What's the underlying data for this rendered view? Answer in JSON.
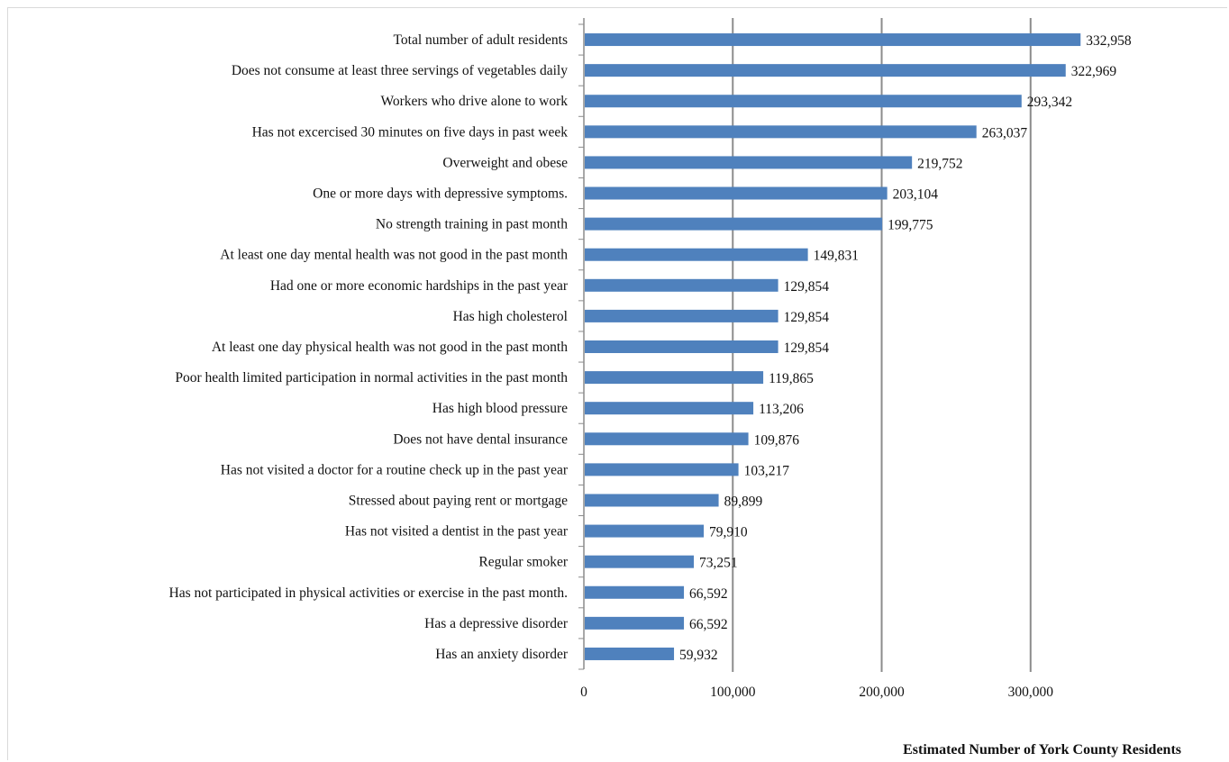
{
  "chart_data": {
    "type": "bar",
    "orientation": "horizontal",
    "xlabel": "Estimated Number of York County Residents",
    "xlim": [
      0,
      380000
    ],
    "xticks": [
      0,
      100000,
      200000,
      300000
    ],
    "xtick_labels": [
      "0",
      "100,000",
      "200,000",
      "300,000"
    ],
    "grid": true,
    "bar_color": "#4f81bd",
    "categories": [
      "Total number of adult residents",
      "Does not consume at least three servings of vegetables daily",
      "Workers who drive alone to work",
      "Has not excercised 30 minutes on five days in past week",
      "Overweight and obese",
      "One or more days with depressive symptoms.",
      "No strength training in past month",
      "At least one day mental health was not good in the past month",
      "Had one or more economic hardships in the past year",
      "Has high cholesterol",
      "At least one day physical health was not good in the past month",
      "Poor health limited participation in normal activities in the past month",
      "Has high blood pressure",
      "Does not have dental insurance",
      "Has not visited a doctor for a routine check up in the past year",
      "Stressed about paying rent or mortgage",
      "Has not visited a dentist in the past year",
      "Regular smoker",
      "Has not participated in physical activities or exercise in the past month.",
      "Has a depressive disorder",
      "Has an anxiety disorder"
    ],
    "values": [
      332958,
      322969,
      293342,
      263037,
      219752,
      203104,
      199775,
      149831,
      129854,
      129854,
      129854,
      119865,
      113206,
      109876,
      103217,
      89899,
      79910,
      73251,
      66592,
      66592,
      59932
    ],
    "value_labels": [
      "332,958",
      "322,969",
      "293,342",
      "263,037",
      "219,752",
      "203,104",
      "199,775",
      "149,831",
      "129,854",
      "129,854",
      "129,854",
      "119,865",
      "113,206",
      "109,876",
      "103,217",
      "89,899",
      "79,910",
      "73,251",
      "66,592",
      "66,592",
      "59,932"
    ]
  }
}
